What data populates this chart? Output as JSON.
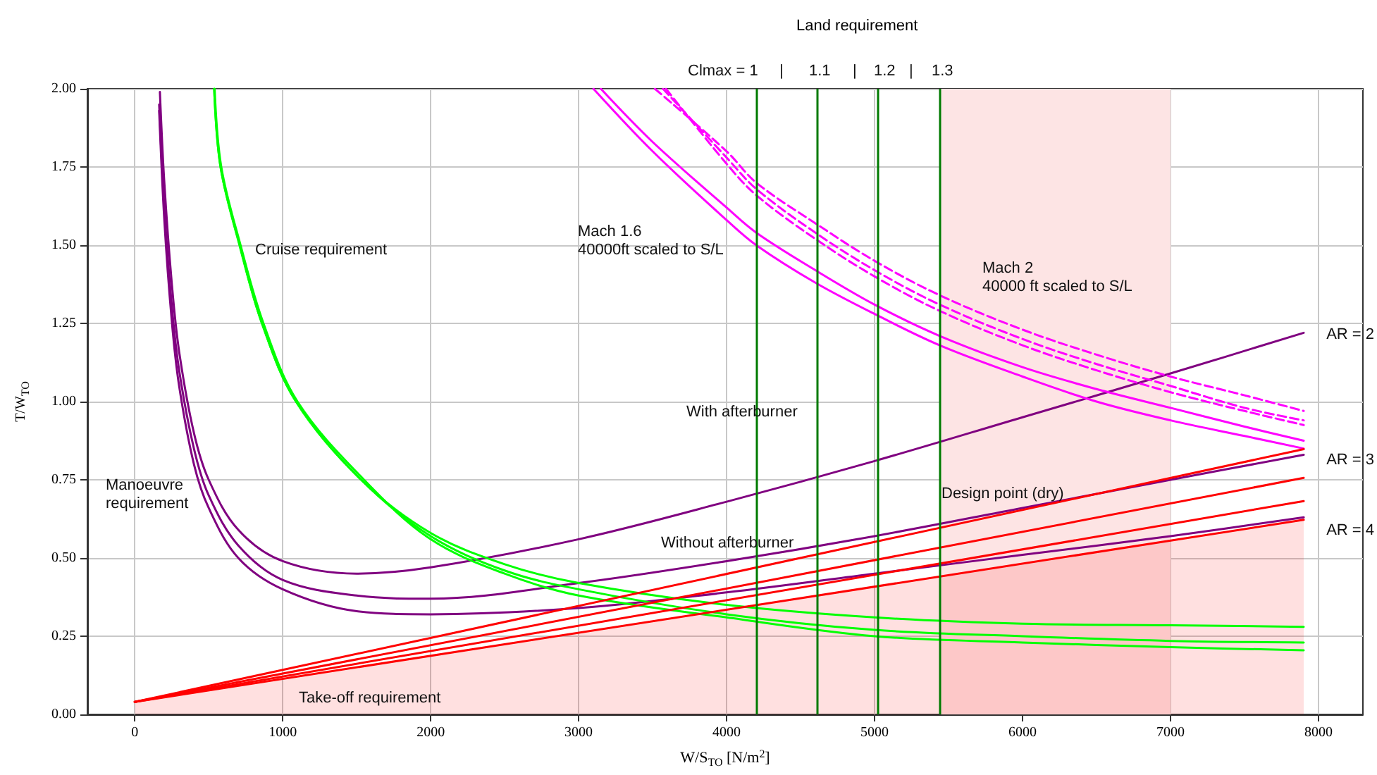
{
  "chart_data": {
    "type": "line",
    "title": "Land requirement",
    "xlabel": "W/S$_{TO}$ [N/m$^{2}$]",
    "ylabel": "T/W$_{TO}$",
    "xlim": [
      -320,
      8300
    ],
    "ylim": [
      0,
      2
    ],
    "xticks": [
      0,
      1000,
      2000,
      3000,
      4000,
      5000,
      6000,
      7000,
      8000
    ],
    "yticks": [
      {
        "value": 0,
        "label": "0.00"
      },
      {
        "value": 0.25,
        "label": "0.25"
      },
      {
        "value": 0.5,
        "label": "0.50"
      },
      {
        "value": 0.75,
        "label": "0.75"
      },
      {
        "value": 1,
        "label": "1.00"
      },
      {
        "value": 1.25,
        "label": "1.25"
      },
      {
        "value": 1.5,
        "label": "1.50"
      },
      {
        "value": 1.75,
        "label": "1.75"
      },
      {
        "value": 2,
        "label": "2.00"
      }
    ],
    "grid": true,
    "marker": "none",
    "line_style": "solid",
    "series": [
      {
        "color": "#800080",
        "x": [
          170,
          200,
          250,
          300,
          400,
          500,
          700,
          1000,
          1500,
          2000,
          3000,
          4000,
          5000,
          6000,
          7000,
          7900
        ],
        "values": [
          1.99,
          1.7,
          1.38,
          1.16,
          0.9,
          0.75,
          0.59,
          0.49,
          0.45,
          0.47,
          0.56,
          0.68,
          0.81,
          0.95,
          1.09,
          1.22
        ]
      },
      {
        "color": "#800080",
        "x": [
          165,
          200,
          250,
          300,
          400,
          500,
          700,
          1000,
          1500,
          2000,
          3000,
          4000,
          5000,
          6000,
          7000,
          7900
        ],
        "values": [
          1.95,
          1.62,
          1.31,
          1.1,
          0.85,
          0.7,
          0.54,
          0.43,
          0.38,
          0.37,
          0.42,
          0.49,
          0.57,
          0.66,
          0.75,
          0.83
        ]
      },
      {
        "color": "#800080",
        "x": [
          165,
          200,
          250,
          300,
          400,
          500,
          700,
          1000,
          1500,
          2000,
          3000,
          4000,
          5000,
          6000,
          7000,
          7900
        ],
        "values": [
          1.93,
          1.58,
          1.26,
          1.05,
          0.8,
          0.66,
          0.5,
          0.4,
          0.33,
          0.32,
          0.34,
          0.39,
          0.45,
          0.51,
          0.57,
          0.63
        ]
      },
      {
        "color": "#00ff00",
        "x": [
          537,
          580,
          710,
          860,
          1090,
          1530,
          2000,
          2500,
          3000,
          4000,
          5000,
          6000,
          7000,
          7900
        ],
        "values": [
          2.0,
          1.75,
          1.5,
          1.25,
          1.0,
          0.75,
          0.58,
          0.48,
          0.42,
          0.35,
          0.31,
          0.29,
          0.285,
          0.28
        ]
      },
      {
        "color": "#00ff00",
        "x": [
          537,
          580,
          708,
          860,
          1090,
          1530,
          2000,
          2500,
          3000,
          4000,
          5000,
          6000,
          7000,
          7900
        ],
        "values": [
          2.0,
          1.75,
          1.5,
          1.25,
          1.0,
          0.75,
          0.57,
          0.46,
          0.4,
          0.32,
          0.27,
          0.25,
          0.235,
          0.23
        ]
      },
      {
        "color": "#00ff00",
        "x": [
          540,
          585,
          715,
          870,
          1100,
          1550,
          2000,
          2500,
          3000,
          4000,
          5000,
          6000,
          7000,
          7900
        ],
        "values": [
          2.0,
          1.75,
          1.5,
          1.25,
          1.0,
          0.75,
          0.56,
          0.45,
          0.38,
          0.31,
          0.25,
          0.23,
          0.215,
          0.205
        ]
      },
      {
        "color": "#ff00ff",
        "x": [
          3150,
          3500,
          4000,
          4200,
          4600,
          5000,
          5440,
          6000,
          6500,
          7000,
          7500,
          7900
        ],
        "values": [
          2.0,
          1.83,
          1.62,
          1.54,
          1.42,
          1.31,
          1.21,
          1.11,
          1.04,
          0.98,
          0.92,
          0.875
        ]
      },
      {
        "color": "#ff00ff",
        "x": [
          3100,
          3500,
          4000,
          4200,
          4600,
          5000,
          5440,
          6000,
          6500,
          7000,
          7500,
          7900
        ],
        "values": [
          2.0,
          1.8,
          1.58,
          1.5,
          1.38,
          1.28,
          1.18,
          1.08,
          1.0,
          0.94,
          0.89,
          0.85
        ]
      },
      {
        "color": "#ff00ff",
        "line_style": "dashed",
        "x": [
          3515,
          4000,
          4200,
          4600,
          5000,
          5440,
          6000,
          6500,
          7000,
          7500,
          7900
        ],
        "values": [
          2.0,
          1.8,
          1.7,
          1.57,
          1.45,
          1.34,
          1.23,
          1.15,
          1.08,
          1.02,
          0.97
        ]
      },
      {
        "color": "#ff00ff",
        "line_style": "dashed",
        "x": [
          3570,
          4000,
          4200,
          4600,
          5000,
          5440,
          6000,
          6500,
          7000,
          7500,
          7900
        ],
        "values": [
          2.0,
          1.78,
          1.68,
          1.54,
          1.42,
          1.31,
          1.2,
          1.12,
          1.05,
          0.98,
          0.94
        ]
      },
      {
        "color": "#ff00ff",
        "line_style": "dashed",
        "x": [
          3590,
          4000,
          4200,
          4600,
          5000,
          5440,
          6000,
          6500,
          7000,
          7500,
          7900
        ],
        "values": [
          2.0,
          1.76,
          1.66,
          1.52,
          1.4,
          1.29,
          1.18,
          1.1,
          1.03,
          0.97,
          0.925
        ]
      },
      {
        "color": "#ff0000",
        "x": [
          0,
          7900
        ],
        "values": [
          0.04,
          0.848
        ]
      },
      {
        "color": "#ff0000",
        "x": [
          0,
          7900
        ],
        "values": [
          0.04,
          0.756
        ]
      },
      {
        "color": "#ff0000",
        "x": [
          0,
          7900
        ],
        "values": [
          0.04,
          0.682
        ]
      },
      {
        "type": "area",
        "color": "#ff0000",
        "x": [
          0,
          7900
        ],
        "values": [
          0.04,
          0.622
        ]
      }
    ],
    "ref_lines": [
      {
        "axis": "x",
        "value": 4200,
        "color": "#007a00"
      },
      {
        "axis": "x",
        "value": 4610,
        "color": "#007a00"
      },
      {
        "axis": "x",
        "value": 5025,
        "color": "#007a00"
      },
      {
        "axis": "x",
        "value": 5440,
        "color": "#007a00"
      }
    ],
    "bands": [
      {
        "axis": "x",
        "from": 5440,
        "to": 7000,
        "color": "#fde4e4"
      }
    ],
    "annotations": [
      "Cruise requirement",
      "Mach 1.6\n40000ft scaled to S/L",
      "Mach 2\n40000 ft scaled to S/L",
      "With afterburner",
      "Without afterburner",
      "Design point (dry)",
      "Manoeuvre\nrequirement",
      "Take-off requirement",
      "AR = 2",
      "AR = 3",
      "AR = 4",
      "Clmax = 1",
      "|",
      "1.1",
      "|",
      "1.2",
      "|",
      "1.3"
    ]
  }
}
